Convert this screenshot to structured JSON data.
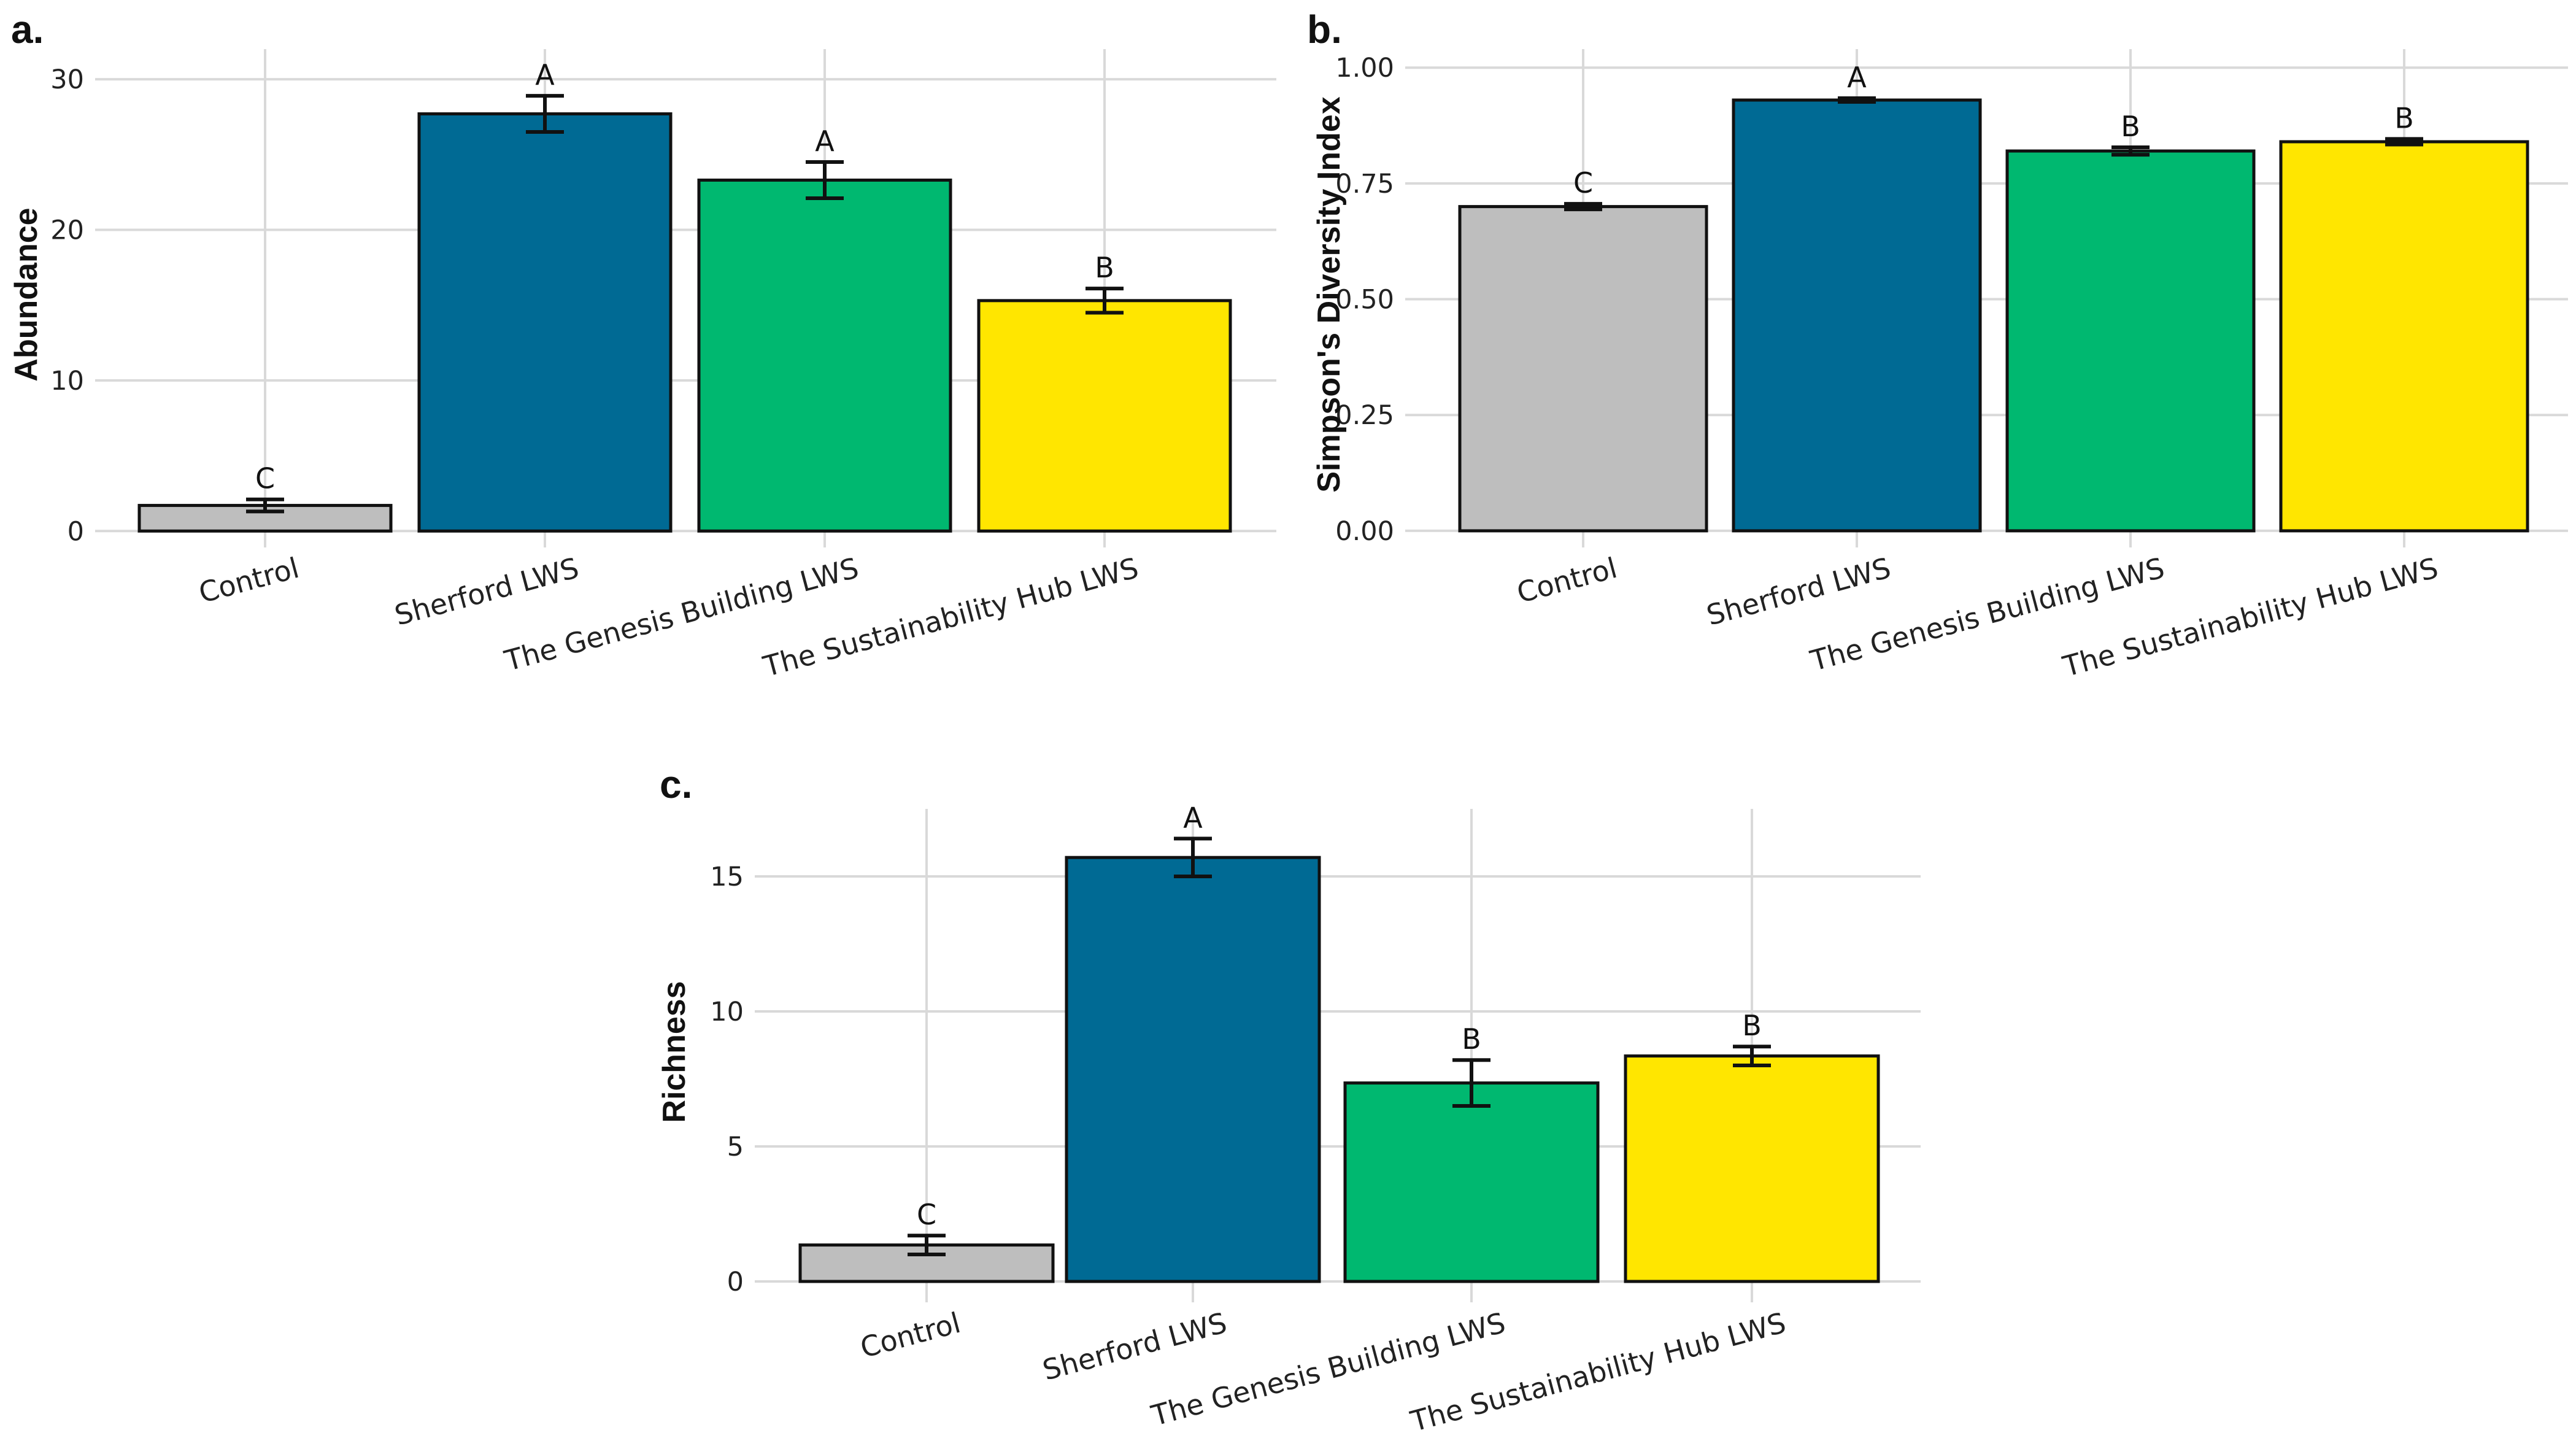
{
  "colors": {
    "Control": "#bebebe",
    "Sherford LWS": "#006a94",
    "The Genesis Building LWS": "#00b870",
    "The Sustainability Hub LWS": "#ffe600"
  },
  "chart_data": [
    {
      "type": "bar",
      "panel_label": "a.",
      "ylabel": "Abundance",
      "xlabel": "",
      "categories": [
        "Control",
        "Sherford LWS",
        "The Genesis Building LWS",
        "The Sustainability Hub LWS"
      ],
      "values": [
        1.7,
        27.7,
        23.3,
        15.3
      ],
      "error_low": [
        1.3,
        26.5,
        22.1,
        14.5
      ],
      "error_high": [
        2.1,
        28.9,
        24.5,
        16.1
      ],
      "significance": [
        "C",
        "A",
        "A",
        "B"
      ],
      "ylim": [
        -0.6,
        32
      ],
      "yticks": [
        0,
        10,
        20,
        30
      ],
      "ytick_labels": [
        "0",
        "10",
        "20",
        "30"
      ],
      "grid": true
    },
    {
      "type": "bar",
      "panel_label": "b.",
      "ylabel": "Simpson's Diversity Index",
      "xlabel": "",
      "categories": [
        "Control",
        "Sherford LWS",
        "The Genesis Building LWS",
        "The Sustainability Hub LWS"
      ],
      "values": [
        0.7,
        0.93,
        0.82,
        0.84
      ],
      "error_low": [
        0.694,
        0.926,
        0.812,
        0.834
      ],
      "error_high": [
        0.706,
        0.934,
        0.828,
        0.846
      ],
      "significance": [
        "C",
        "A",
        "B",
        "B"
      ],
      "ylim": [
        -0.02,
        1.04
      ],
      "yticks": [
        0,
        0.25,
        0.5,
        0.75,
        1.0
      ],
      "ytick_labels": [
        "0.00",
        "0.25",
        "0.50",
        "0.75",
        "1.00"
      ],
      "grid": true
    },
    {
      "type": "bar",
      "panel_label": "c.",
      "ylabel": "Richness",
      "xlabel": "",
      "categories": [
        "Control",
        "Sherford LWS",
        "The Genesis Building LWS",
        "The Sustainability Hub LWS"
      ],
      "values": [
        1.35,
        15.7,
        7.35,
        8.35
      ],
      "error_low": [
        1.0,
        15.0,
        6.5,
        8.0
      ],
      "error_high": [
        1.7,
        16.4,
        8.2,
        8.7
      ],
      "significance": [
        "C",
        "A",
        "B",
        "B"
      ],
      "ylim": [
        -0.5,
        17.5
      ],
      "yticks": [
        0,
        5,
        10,
        15
      ],
      "ytick_labels": [
        "0",
        "5",
        "10",
        "15"
      ],
      "grid": true
    }
  ]
}
